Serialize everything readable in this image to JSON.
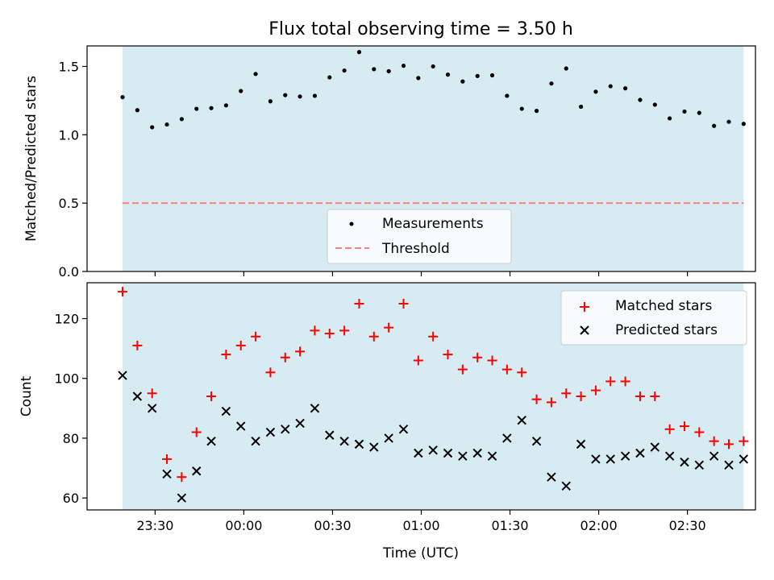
{
  "chart_data": {
    "title": "Flux total observing time = 3.50 h",
    "xlabel": "Time (UTC)",
    "x_tick_labels": [
      "23:30",
      "00:00",
      "00:30",
      "01:00",
      "01:30",
      "02:00",
      "02:30"
    ],
    "x_tick_minutes": [
      -30,
      0,
      30,
      60,
      90,
      120,
      150
    ],
    "xlim_minutes": [
      -53,
      173
    ],
    "shaded_span_minutes": [
      -41,
      169
    ],
    "colors": {
      "shade": "#add8e6",
      "matched": "#ff0000",
      "predicted": "#000000",
      "threshold": "#ff7f7f",
      "measure": "#000000"
    },
    "x_minutes": [
      -41,
      -36,
      -31,
      -26,
      -21,
      -16,
      -11,
      -6,
      -1,
      4,
      9,
      14,
      19,
      24,
      29,
      34,
      39,
      44,
      49,
      54,
      59,
      64,
      69,
      74,
      79,
      84,
      89,
      94,
      99,
      104,
      109,
      114,
      119,
      124,
      129,
      134,
      139,
      144,
      149,
      154,
      159,
      164,
      169
    ],
    "panels": [
      {
        "type": "scatter",
        "ylabel": "Matched/Predicted stars",
        "ylim": [
          0,
          1.65
        ],
        "y_ticks": [
          0.0,
          0.5,
          1.0,
          1.5
        ],
        "y_tick_labels": [
          "0.0",
          "0.5",
          "1.0",
          "1.5"
        ],
        "threshold": 0.5,
        "legend_position": "lower center",
        "legend": [
          "Measurements",
          "Threshold"
        ],
        "series": [
          {
            "name": "Measurements",
            "values": [
              1.275,
              1.18,
              1.055,
              1.075,
              1.115,
              1.19,
              1.195,
              1.215,
              1.32,
              1.445,
              1.245,
              1.29,
              1.28,
              1.285,
              1.42,
              1.47,
              1.605,
              1.48,
              1.465,
              1.505,
              1.415,
              1.5,
              1.44,
              1.39,
              1.43,
              1.435,
              1.285,
              1.19,
              1.175,
              1.375,
              1.485,
              1.205,
              1.315,
              1.355,
              1.34,
              1.255,
              1.22,
              1.12,
              1.17,
              1.16,
              1.065,
              1.095,
              1.08
            ]
          },
          {
            "name": "Threshold",
            "values": [
              0.5
            ]
          }
        ]
      },
      {
        "type": "scatter",
        "ylabel": "Count",
        "ylim": [
          56,
          132
        ],
        "y_ticks": [
          60,
          80,
          100,
          120
        ],
        "y_tick_labels": [
          "60",
          "80",
          "100",
          "120"
        ],
        "legend_position": "upper right",
        "legend": [
          "Matched stars",
          "Predicted stars"
        ],
        "series": [
          {
            "name": "Matched stars",
            "values": [
              129,
              111,
              95,
              73,
              67,
              82,
              94,
              108,
              111,
              114,
              102,
              107,
              109,
              116,
              115,
              116,
              125,
              114,
              117,
              125,
              106,
              114,
              108,
              103,
              107,
              106,
              103,
              102,
              93,
              92,
              95,
              94,
              96,
              99,
              99,
              94,
              94,
              83,
              84,
              82,
              79,
              78,
              79
            ]
          },
          {
            "name": "Predicted stars",
            "values": [
              101,
              94,
              90,
              68,
              60,
              69,
              79,
              89,
              84,
              79,
              82,
              83,
              85,
              90,
              81,
              79,
              78,
              77,
              80,
              83,
              75,
              76,
              75,
              74,
              75,
              74,
              80,
              86,
              79,
              67,
              64,
              78,
              73,
              73,
              74,
              75,
              77,
              74,
              72,
              71,
              74,
              71,
              73
            ]
          }
        ]
      }
    ]
  }
}
